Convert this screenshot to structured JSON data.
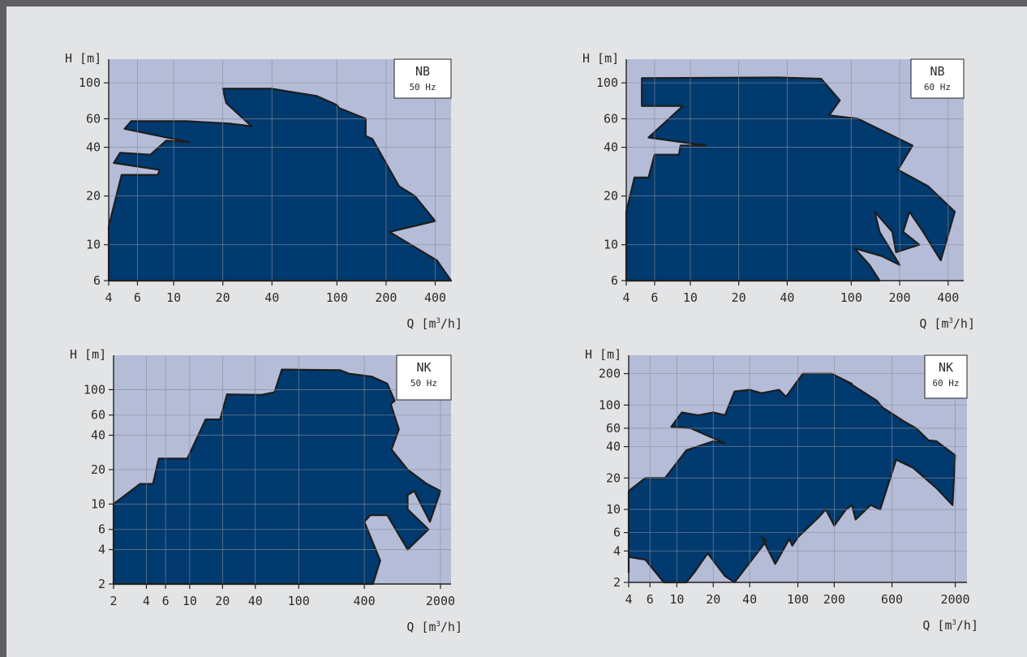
{
  "charts_title": "",
  "colors": {
    "plot_bg": "#b4bcd8",
    "area_fill": "#003a6f",
    "area_stroke": "#1d1d1d",
    "grid": "#8a8d98",
    "page_bg": "#e3e4e6"
  },
  "chart_data": [
    {
      "type": "area",
      "name": "NB-50",
      "legend": {
        "line1": "NB",
        "line2": "50 Hz"
      },
      "ylabel": "H [m]",
      "xlabel": "Q [m³/h]",
      "xlabel_main": "Q [m",
      "xlabel_sup": "3",
      "xlabel_end": "/h]",
      "xscale": "log",
      "yscale": "log",
      "xlim": [
        4,
        500
      ],
      "ylim": [
        6,
        140
      ],
      "xticks": [
        4,
        6,
        10,
        20,
        40,
        100,
        200,
        400
      ],
      "yticks": [
        6,
        10,
        20,
        40,
        60,
        100
      ],
      "envelope": [
        [
          4,
          6
        ],
        [
          4,
          13
        ],
        [
          4.8,
          27
        ],
        [
          8,
          27
        ],
        [
          8.2,
          29
        ],
        [
          4.3,
          32
        ],
        [
          4.7,
          37
        ],
        [
          7.2,
          36
        ],
        [
          9,
          44
        ],
        [
          12.5,
          43
        ],
        [
          5,
          52
        ],
        [
          5.5,
          58
        ],
        [
          12,
          58
        ],
        [
          22,
          56
        ],
        [
          30,
          54
        ],
        [
          21,
          75
        ],
        [
          20,
          92
        ],
        [
          40,
          92
        ],
        [
          75,
          83
        ],
        [
          100,
          73
        ],
        [
          103,
          70
        ],
        [
          150,
          60
        ],
        [
          150,
          47
        ],
        [
          165,
          45
        ],
        [
          240,
          23
        ],
        [
          300,
          20
        ],
        [
          400,
          14
        ],
        [
          210,
          12
        ],
        [
          410,
          8
        ],
        [
          500,
          6
        ]
      ]
    },
    {
      "type": "area",
      "name": "NB-60",
      "legend": {
        "line1": "NB",
        "line2": "60 Hz"
      },
      "ylabel": "H [m]",
      "xlabel": "Q [m³/h]",
      "xlabel_main": "Q [m",
      "xlabel_sup": "3",
      "xlabel_end": "/h]",
      "xscale": "log",
      "yscale": "log",
      "xlim": [
        4,
        500
      ],
      "ylim": [
        6,
        140
      ],
      "xticks": [
        4,
        6,
        10,
        20,
        40,
        100,
        200,
        400
      ],
      "yticks": [
        6,
        10,
        20,
        40,
        60,
        100
      ],
      "envelope": [
        [
          4,
          6
        ],
        [
          4,
          16
        ],
        [
          4.5,
          26
        ],
        [
          5.5,
          26
        ],
        [
          6,
          36
        ],
        [
          8.5,
          36
        ],
        [
          8.7,
          41
        ],
        [
          12.5,
          41
        ],
        [
          5.5,
          46
        ],
        [
          9,
          72
        ],
        [
          5,
          72
        ],
        [
          5,
          107
        ],
        [
          35,
          108
        ],
        [
          65,
          106
        ],
        [
          85,
          78
        ],
        [
          73,
          63
        ],
        [
          110,
          60
        ],
        [
          240,
          41
        ],
        [
          195,
          29
        ],
        [
          300,
          23
        ],
        [
          440,
          16
        ],
        [
          360,
          8
        ],
        [
          280,
          12
        ],
        [
          230,
          16
        ],
        [
          210,
          12
        ],
        [
          265,
          10
        ],
        [
          190,
          9
        ],
        [
          180,
          12
        ],
        [
          140,
          16
        ],
        [
          150,
          12
        ],
        [
          200,
          7.5
        ],
        [
          155,
          8.5
        ],
        [
          105,
          9.5
        ],
        [
          130,
          7.5
        ],
        [
          150,
          6
        ]
      ]
    },
    {
      "type": "area",
      "name": "NK-50",
      "legend": {
        "line1": "NK",
        "line2": "50 Hz"
      },
      "ylabel": "H [m]",
      "xlabel": "Q [m³/h]",
      "xlabel_main": "Q [m",
      "xlabel_sup": "3",
      "xlabel_end": "/h]",
      "xscale": "log",
      "yscale": "log",
      "xlim": [
        2,
        2500
      ],
      "ylim": [
        2,
        200
      ],
      "xticks": [
        2,
        4,
        6,
        10,
        20,
        40,
        100,
        400,
        2000
      ],
      "yticks": [
        2,
        4,
        6,
        10,
        20,
        40,
        60,
        100
      ],
      "envelope": [
        [
          2,
          2
        ],
        [
          2,
          10
        ],
        [
          3.5,
          15
        ],
        [
          4.6,
          15
        ],
        [
          5.2,
          25
        ],
        [
          9.5,
          25
        ],
        [
          14,
          55
        ],
        [
          19,
          55
        ],
        [
          22,
          91
        ],
        [
          45,
          90
        ],
        [
          60,
          95
        ],
        [
          70,
          150
        ],
        [
          240,
          148
        ],
        [
          290,
          138
        ],
        [
          470,
          130
        ],
        [
          650,
          113
        ],
        [
          760,
          80
        ],
        [
          700,
          75
        ],
        [
          830,
          45
        ],
        [
          710,
          30
        ],
        [
          1000,
          20
        ],
        [
          1500,
          15
        ],
        [
          2000,
          13
        ],
        [
          1600,
          7
        ],
        [
          1150,
          13
        ],
        [
          1000,
          12
        ],
        [
          1000,
          9
        ],
        [
          1550,
          6
        ],
        [
          1000,
          4
        ],
        [
          650,
          8
        ],
        [
          455,
          8
        ],
        [
          400,
          7
        ],
        [
          560,
          3.2
        ],
        [
          480,
          2
        ]
      ]
    },
    {
      "type": "area",
      "name": "NK-60",
      "legend": {
        "line1": "NK",
        "line2": "60 Hz"
      },
      "ylabel": "H [m]",
      "xlabel": "Q [m³/h]",
      "xlabel_main": "Q [m",
      "xlabel_sup": "3",
      "xlabel_end": "/h]",
      "xscale": "log",
      "yscale": "log",
      "xlim": [
        4,
        2500
      ],
      "ylim": [
        2,
        300
      ],
      "xticks": [
        4,
        6,
        10,
        20,
        40,
        100,
        200,
        600,
        2000
      ],
      "yticks": [
        2,
        4,
        6,
        10,
        20,
        40,
        60,
        100,
        200
      ],
      "envelope": [
        [
          4,
          2.5
        ],
        [
          4,
          3.5
        ],
        [
          5.5,
          3.3
        ],
        [
          7.8,
          2
        ],
        [
          12,
          2
        ],
        [
          14,
          2.5
        ],
        [
          18,
          3.8
        ],
        [
          25,
          2.3
        ],
        [
          30,
          2
        ],
        [
          55,
          5
        ],
        [
          50,
          5.5
        ],
        [
          65,
          3
        ],
        [
          85,
          5.2
        ],
        [
          90,
          4.5
        ],
        [
          100,
          5.4
        ],
        [
          150,
          8.5
        ],
        [
          170,
          10
        ],
        [
          200,
          7
        ],
        [
          250,
          10
        ],
        [
          280,
          11
        ],
        [
          300,
          8
        ],
        [
          400,
          11
        ],
        [
          480,
          10
        ],
        [
          650,
          30
        ],
        [
          900,
          25
        ],
        [
          1400,
          16
        ],
        [
          1900,
          11
        ],
        [
          2000,
          33
        ],
        [
          1400,
          45
        ],
        [
          1200,
          46
        ],
        [
          950,
          60
        ],
        [
          750,
          70
        ],
        [
          500,
          95
        ],
        [
          450,
          110
        ],
        [
          250,
          170
        ],
        [
          280,
          160
        ],
        [
          190,
          200
        ],
        [
          110,
          200
        ],
        [
          80,
          120
        ],
        [
          70,
          140
        ],
        [
          50,
          130
        ],
        [
          40,
          140
        ],
        [
          30,
          135
        ],
        [
          25,
          80
        ],
        [
          20,
          85
        ],
        [
          15,
          80
        ],
        [
          11,
          85
        ],
        [
          9,
          62
        ],
        [
          13,
          60
        ],
        [
          25,
          43
        ],
        [
          20,
          45
        ],
        [
          12,
          37
        ],
        [
          8,
          20
        ],
        [
          5.5,
          20
        ],
        [
          4,
          15
        ]
      ]
    }
  ]
}
